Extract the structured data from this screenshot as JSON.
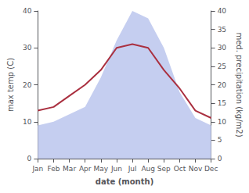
{
  "chart_data": {
    "type": "line",
    "categories": [
      "Jan",
      "Feb",
      "Mar",
      "Apr",
      "May",
      "Jun",
      "Jul",
      "Aug",
      "Sep",
      "Oct",
      "Nov",
      "Dec"
    ],
    "series": [
      {
        "type": "area",
        "axis": "y2",
        "color": "#c5cef0",
        "values": [
          9,
          10,
          12,
          14,
          22,
          32,
          40,
          38,
          30,
          18,
          11,
          9
        ]
      },
      {
        "type": "line",
        "color": "#aa3040",
        "values": [
          13,
          14,
          17,
          20,
          24,
          30,
          31,
          30,
          24,
          19,
          13,
          11
        ]
      }
    ],
    "xlabel": "date (month)",
    "ylabel": "max temp (C)",
    "y2label": "med. precipitation (kg/m2)",
    "ylim": [
      0,
      40
    ],
    "yticks": [
      0,
      10,
      20,
      30,
      40
    ],
    "y2lim": [
      0,
      40
    ],
    "y2ticks": [
      0,
      5,
      10,
      15,
      20,
      25,
      30,
      35,
      40
    ],
    "grid": false
  }
}
